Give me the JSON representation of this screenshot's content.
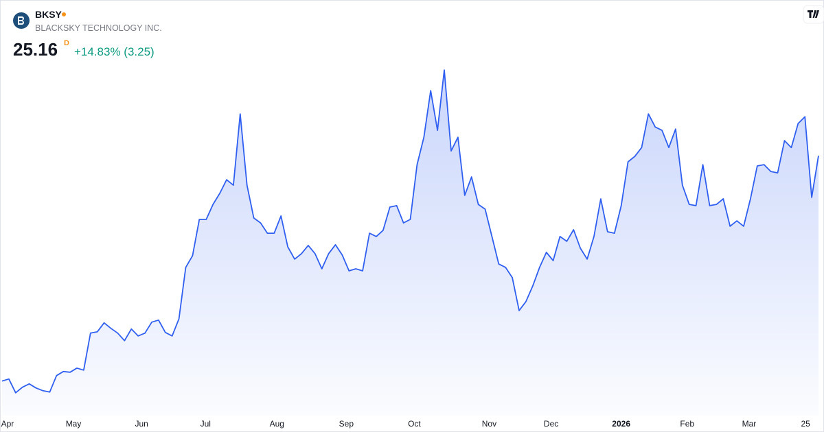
{
  "header": {
    "symbol": "BKSY",
    "company": "BLACKSKY TECHNOLOGY INC.",
    "last": "25.16",
    "interval": "D",
    "change": "+14.83% (3.25)"
  },
  "chart_data": {
    "type": "area",
    "color": "#2f5ff0",
    "values": [
      7.63,
      7.79,
      6.72,
      7.15,
      7.41,
      7.09,
      6.88,
      6.77,
      8.05,
      8.37,
      8.32,
      8.64,
      8.48,
      11.36,
      11.46,
      12.16,
      11.73,
      11.36,
      10.77,
      11.68,
      11.14,
      11.36,
      12.21,
      12.37,
      11.41,
      11.14,
      12.47,
      16.47,
      17.38,
      20.2,
      20.2,
      21.37,
      22.23,
      23.29,
      22.86,
      28.41,
      22.86,
      20.31,
      19.93,
      19.13,
      19.13,
      20.47,
      18.07,
      17.11,
      17.54,
      18.18,
      17.54,
      16.36,
      17.54,
      18.23,
      17.43,
      16.2,
      16.36,
      16.2,
      19.13,
      18.87,
      19.35,
      21.16,
      21.27,
      19.93,
      20.2,
      24.46,
      26.59,
      30.22,
      27.13,
      31.82,
      25.53,
      26.59,
      22.07,
      23.5,
      21.37,
      21.0,
      18.87,
      16.74,
      16.47,
      15.67,
      13.11,
      13.81,
      15.03,
      16.47,
      17.64,
      17.0,
      18.87,
      18.5,
      19.4,
      17.96,
      17.11,
      18.87,
      21.8,
      19.24,
      19.13,
      21.27,
      24.68,
      25.1,
      25.79,
      28.41,
      27.39,
      27.13,
      25.79,
      27.23,
      22.86,
      21.37,
      21.27,
      24.46,
      21.27,
      21.37,
      21.8,
      19.67,
      20.09,
      19.67,
      21.8,
      24.36,
      24.46,
      23.93,
      23.82,
      26.33,
      25.79,
      27.66,
      28.19,
      21.91,
      25.16
    ],
    "xlim": [
      0,
      120
    ],
    "ylim": [
      5,
      33
    ],
    "xticks": [
      {
        "value": 0.8,
        "label": "Apr"
      },
      {
        "value": 10.5,
        "label": "May"
      },
      {
        "value": 20.5,
        "label": "Jun"
      },
      {
        "value": 29.9,
        "label": "Jul"
      },
      {
        "value": 40.4,
        "label": "Aug"
      },
      {
        "value": 50.6,
        "label": "Sep"
      },
      {
        "value": 60.6,
        "label": "Oct"
      },
      {
        "value": 71.6,
        "label": "Nov"
      },
      {
        "value": 80.7,
        "label": "Dec"
      },
      {
        "value": 91.0,
        "label": "2026"
      },
      {
        "value": 100.7,
        "label": "Feb"
      },
      {
        "value": 109.8,
        "label": "Mar"
      },
      {
        "value": 118.1,
        "label": "25"
      }
    ]
  }
}
